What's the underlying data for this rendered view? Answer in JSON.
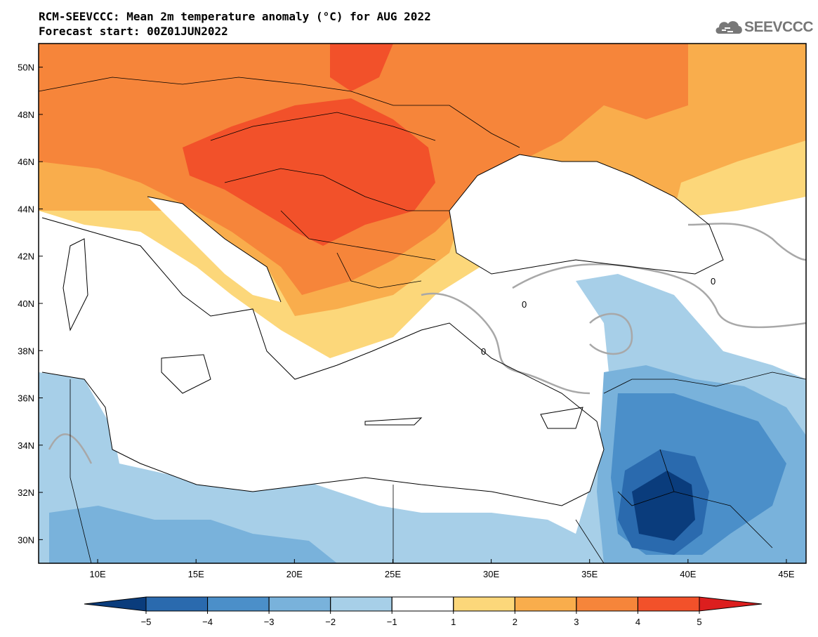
{
  "header": {
    "title": "RCM-SEEVCCC: Mean 2m temperature anomaly (°C) for AUG 2022",
    "subtitle": "Forecast start: 00Z01JUN2022"
  },
  "logo": {
    "text": "SEEVCCC",
    "icon": "cloud-icon"
  },
  "map": {
    "lon_range": [
      7,
      46
    ],
    "lat_range": [
      29,
      51
    ],
    "lon_ticks": [
      "10E",
      "15E",
      "20E",
      "25E",
      "30E",
      "35E",
      "40E",
      "45E"
    ],
    "lat_ticks": [
      "30N",
      "32N",
      "34N",
      "36N",
      "38N",
      "40N",
      "42N",
      "44N",
      "46N",
      "48N",
      "50N"
    ],
    "contour_labels": [
      "0",
      "0",
      "0"
    ]
  },
  "colorbar": {
    "labels": [
      "−5",
      "−4",
      "−3",
      "−2",
      "−1",
      "1",
      "2",
      "3",
      "4",
      "5"
    ],
    "colors": [
      "#0a3c7c",
      "#2a6aae",
      "#4b8fc9",
      "#79b2db",
      "#a7cfe8",
      "#ffffff",
      "#fcd77a",
      "#f9ad4c",
      "#f6853a",
      "#f2512a",
      "#dc1e1e"
    ]
  }
}
